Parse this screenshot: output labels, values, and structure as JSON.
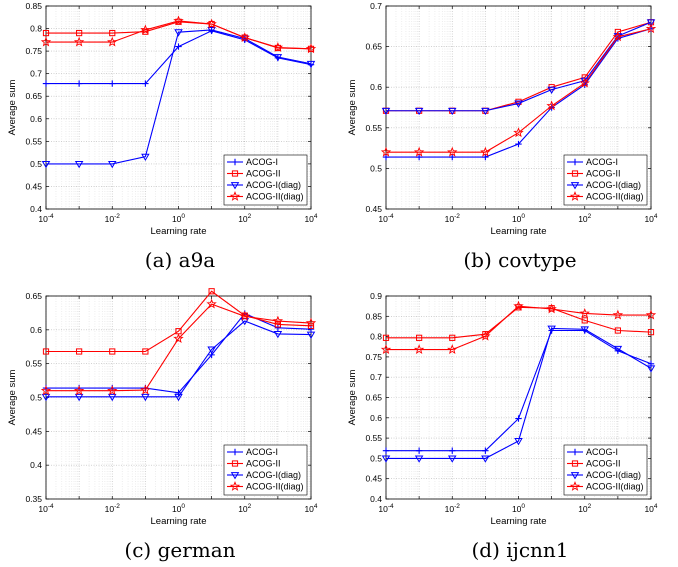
{
  "figure": {
    "x_tick_labels": [
      "10^-4",
      "10^-2",
      "10^0",
      "10^2",
      "10^4"
    ]
  },
  "colors": {
    "blue": "#0000ff",
    "red": "#ff0000"
  },
  "chart_data": [
    {
      "type": "line",
      "caption": "(a) a9a",
      "xlabel": "Learning rate",
      "ylabel": "Average sum",
      "xscale": "log",
      "x": [
        0.0001,
        0.001,
        0.01,
        0.1,
        1,
        10,
        100,
        1000,
        10000
      ],
      "ylim": [
        0.4,
        0.85
      ],
      "yticks": [
        0.4,
        0.45,
        0.5,
        0.55,
        0.6,
        0.65,
        0.7,
        0.75,
        0.8,
        0.85
      ],
      "legend_position": "bottom-right",
      "grid": true,
      "series": [
        {
          "name": "ACOG-I",
          "color": "blue",
          "marker": "plus",
          "values": [
            0.678,
            0.678,
            0.678,
            0.678,
            0.76,
            0.795,
            0.775,
            0.735,
            0.72
          ]
        },
        {
          "name": "ACOG-II",
          "color": "red",
          "marker": "square",
          "values": [
            0.79,
            0.79,
            0.79,
            0.793,
            0.815,
            0.81,
            0.78,
            0.757,
            0.755
          ]
        },
        {
          "name": "ACOG-I(diag)",
          "color": "blue",
          "marker": "triangle-down",
          "values": [
            0.5,
            0.5,
            0.5,
            0.516,
            0.792,
            0.797,
            0.778,
            0.737,
            0.722
          ]
        },
        {
          "name": "ACOG-II(diag)",
          "color": "red",
          "marker": "star",
          "values": [
            0.77,
            0.77,
            0.77,
            0.797,
            0.817,
            0.81,
            0.78,
            0.758,
            0.755
          ]
        }
      ]
    },
    {
      "type": "line",
      "caption": "(b) covtype",
      "xlabel": "Learning rate",
      "ylabel": "Average sum",
      "xscale": "log",
      "x": [
        0.0001,
        0.001,
        0.01,
        0.1,
        1,
        10,
        100,
        1000,
        10000
      ],
      "ylim": [
        0.45,
        0.7
      ],
      "yticks": [
        0.45,
        0.5,
        0.55,
        0.6,
        0.65,
        0.7
      ],
      "legend_position": "bottom-right",
      "grid": true,
      "series": [
        {
          "name": "ACOG-I",
          "color": "blue",
          "marker": "plus",
          "values": [
            0.514,
            0.514,
            0.514,
            0.514,
            0.53,
            0.575,
            0.603,
            0.66,
            0.672
          ]
        },
        {
          "name": "ACOG-II",
          "color": "red",
          "marker": "square",
          "values": [
            0.571,
            0.571,
            0.571,
            0.571,
            0.582,
            0.6,
            0.612,
            0.668,
            0.68
          ]
        },
        {
          "name": "ACOG-I(diag)",
          "color": "blue",
          "marker": "triangle-down",
          "values": [
            0.571,
            0.571,
            0.571,
            0.571,
            0.58,
            0.597,
            0.608,
            0.663,
            0.68
          ]
        },
        {
          "name": "ACOG-II(diag)",
          "color": "red",
          "marker": "star",
          "values": [
            0.52,
            0.52,
            0.52,
            0.52,
            0.544,
            0.577,
            0.605,
            0.662,
            0.672
          ]
        }
      ]
    },
    {
      "type": "line",
      "caption": "(c) german",
      "xlabel": "Learning rate",
      "ylabel": "Average sum",
      "xscale": "log",
      "x": [
        0.0001,
        0.001,
        0.01,
        0.1,
        1,
        10,
        100,
        1000,
        10000
      ],
      "ylim": [
        0.35,
        0.65
      ],
      "yticks": [
        0.35,
        0.4,
        0.45,
        0.5,
        0.55,
        0.6,
        0.65
      ],
      "legend_position": "bottom-right",
      "grid": true,
      "series": [
        {
          "name": "ACOG-I",
          "color": "blue",
          "marker": "plus",
          "values": [
            0.514,
            0.514,
            0.514,
            0.514,
            0.507,
            0.563,
            0.624,
            0.603,
            0.601
          ]
        },
        {
          "name": "ACOG-II",
          "color": "red",
          "marker": "square",
          "values": [
            0.568,
            0.568,
            0.568,
            0.568,
            0.598,
            0.657,
            0.621,
            0.608,
            0.606
          ]
        },
        {
          "name": "ACOG-I(diag)",
          "color": "blue",
          "marker": "triangle-down",
          "values": [
            0.501,
            0.501,
            0.501,
            0.501,
            0.501,
            0.571,
            0.613,
            0.594,
            0.593
          ]
        },
        {
          "name": "ACOG-II(diag)",
          "color": "red",
          "marker": "star",
          "values": [
            0.51,
            0.51,
            0.51,
            0.511,
            0.587,
            0.638,
            0.62,
            0.613,
            0.61
          ]
        }
      ]
    },
    {
      "type": "line",
      "caption": "(d) ijcnn1",
      "xlabel": "Learning rate",
      "ylabel": "Average sum",
      "xscale": "log",
      "x": [
        0.0001,
        0.001,
        0.01,
        0.1,
        1,
        10,
        100,
        1000,
        10000
      ],
      "ylim": [
        0.4,
        0.9
      ],
      "yticks": [
        0.4,
        0.45,
        0.5,
        0.55,
        0.6,
        0.65,
        0.7,
        0.75,
        0.8,
        0.85,
        0.9
      ],
      "legend_position": "bottom-right",
      "grid": true,
      "series": [
        {
          "name": "ACOG-I",
          "color": "blue",
          "marker": "plus",
          "values": [
            0.519,
            0.519,
            0.519,
            0.519,
            0.598,
            0.815,
            0.815,
            0.765,
            0.733
          ]
        },
        {
          "name": "ACOG-II",
          "color": "red",
          "marker": "square",
          "values": [
            0.797,
            0.797,
            0.797,
            0.806,
            0.872,
            0.87,
            0.84,
            0.815,
            0.811
          ]
        },
        {
          "name": "ACOG-I(diag)",
          "color": "blue",
          "marker": "triangle-down",
          "values": [
            0.5,
            0.5,
            0.5,
            0.5,
            0.543,
            0.82,
            0.818,
            0.77,
            0.722
          ]
        },
        {
          "name": "ACOG-II(diag)",
          "color": "red",
          "marker": "star",
          "values": [
            0.768,
            0.768,
            0.768,
            0.801,
            0.875,
            0.868,
            0.857,
            0.853,
            0.853
          ]
        }
      ]
    }
  ]
}
